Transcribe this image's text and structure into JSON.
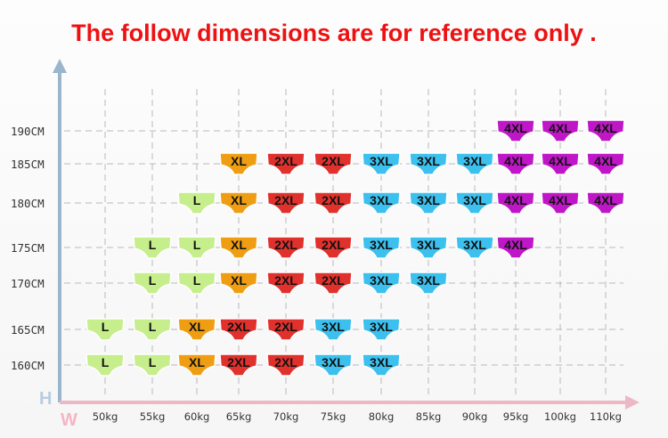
{
  "title": "The follow dimensions are for reference only .",
  "chart_data": {
    "type": "heatmap",
    "x_axis_letter": "W",
    "y_axis_letter": "H",
    "x_categories": [
      "50kg",
      "55kg",
      "60kg",
      "65kg",
      "70kg",
      "75kg",
      "80kg",
      "85kg",
      "90kg",
      "95kg",
      "100kg",
      "110kg"
    ],
    "y_categories": [
      "190CM",
      "185CM",
      "180CM",
      "175CM",
      "170CM",
      "165CM",
      "160CM"
    ],
    "grid": true,
    "size_colors": {
      "L": "#c6ee8c",
      "XL": "#ef9e13",
      "2XL": "#e0312c",
      "3XL": "#3cc0ee",
      "4XL": "#bf17c8"
    },
    "rows": [
      [
        "",
        "",
        "",
        "",
        "",
        "",
        "",
        "",
        "",
        "4XL",
        "4XL",
        "4XL"
      ],
      [
        "",
        "",
        "",
        "XL",
        "2XL",
        "2XL",
        "3XL",
        "3XL",
        "3XL",
        "4XL",
        "4XL",
        "4XL"
      ],
      [
        "",
        "",
        "L",
        "XL",
        "2XL",
        "2XL",
        "3XL",
        "3XL",
        "3XL",
        "4XL",
        "4XL",
        "4XL"
      ],
      [
        "",
        "L",
        "L",
        "XL",
        "2XL",
        "2XL",
        "3XL",
        "3XL",
        "3XL",
        "4XL",
        "",
        ""
      ],
      [
        "",
        "L",
        "L",
        "XL",
        "2XL",
        "2XL",
        "3XL",
        "3XL",
        "",
        "",
        "",
        ""
      ],
      [
        "L",
        "L",
        "XL",
        "2XL",
        "2XL",
        "3XL",
        "3XL",
        "",
        "",
        "",
        "",
        ""
      ],
      [
        "L",
        "L",
        "XL",
        "2XL",
        "2XL",
        "3XL",
        "3XL",
        "",
        "",
        "",
        "",
        ""
      ]
    ]
  }
}
